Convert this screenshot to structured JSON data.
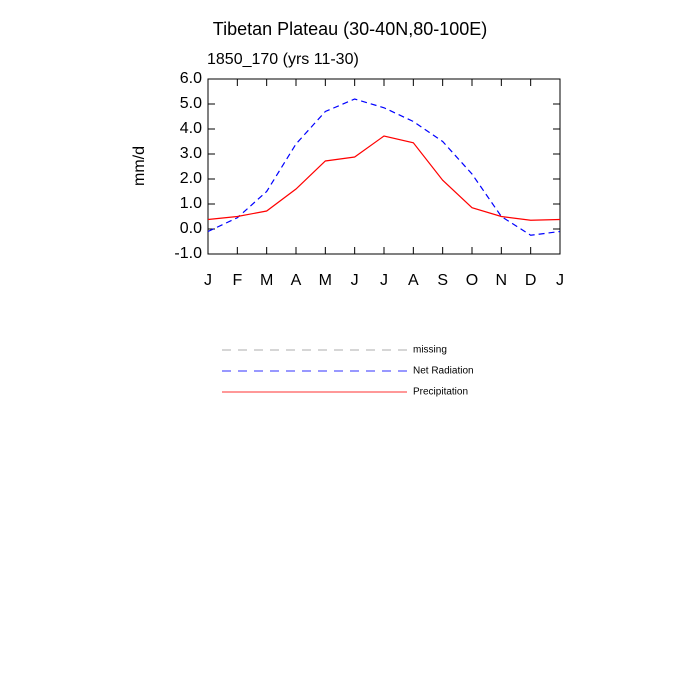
{
  "chart_data": {
    "type": "line",
    "title": "Tibetan Plateau (30-40N,80-100E)",
    "subtitle": "1850_170 (yrs 11-30)",
    "y_label": "mm/d",
    "categories": [
      "J",
      "F",
      "M",
      "A",
      "M",
      "J",
      "J",
      "A",
      "S",
      "O",
      "N",
      "D",
      "J"
    ],
    "ylim": [
      -1,
      6
    ],
    "yticks": [
      {
        "value": -1,
        "label": "-1.0"
      },
      {
        "value": 0,
        "label": "0.0"
      },
      {
        "value": 1,
        "label": "1.0"
      },
      {
        "value": 2,
        "label": "2.0"
      },
      {
        "value": 3,
        "label": "3.0"
      },
      {
        "value": 4,
        "label": "4.0"
      },
      {
        "value": 5,
        "label": "5.0"
      },
      {
        "value": 6,
        "label": "6.0"
      }
    ],
    "series": [
      {
        "name": "missing",
        "color": "#999999",
        "dashed": true,
        "values": [
          null,
          null,
          null,
          null,
          null,
          null,
          null,
          null,
          null,
          null,
          null,
          null,
          null
        ]
      },
      {
        "name": "Net Radiation",
        "color": "#0000ff",
        "dashed": true,
        "values": [
          -0.1,
          0.45,
          1.5,
          3.4,
          4.7,
          5.2,
          4.85,
          4.3,
          3.5,
          2.2,
          0.5,
          -0.25,
          -0.1
        ]
      },
      {
        "name": "Precipitation",
        "color": "#ff0000",
        "dashed": false,
        "values": [
          0.38,
          0.5,
          0.72,
          1.6,
          2.72,
          2.88,
          3.72,
          3.45,
          1.95,
          0.85,
          0.5,
          0.35,
          0.38
        ]
      }
    ]
  }
}
